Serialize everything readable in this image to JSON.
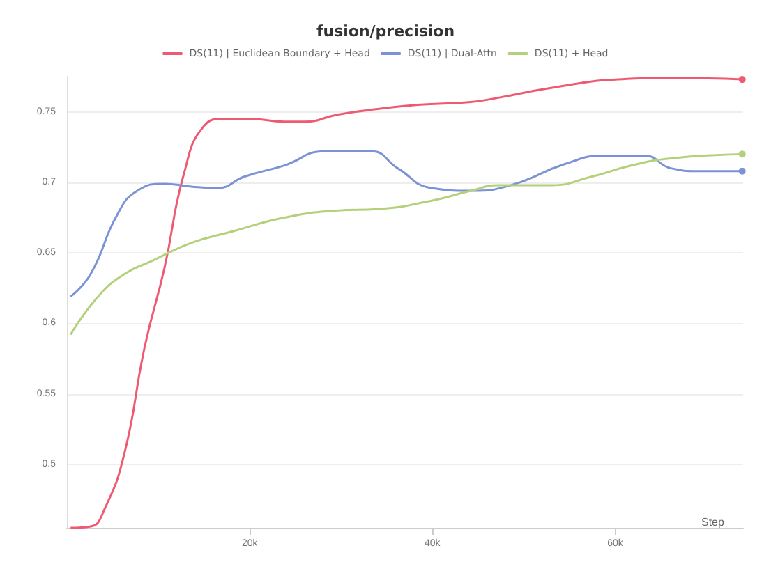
{
  "chart_data": {
    "type": "line",
    "title": "fusion/precision",
    "xlabel": "Step",
    "xlim": [
      0,
      74000
    ],
    "xticks": [
      {
        "value": 20000,
        "label": "20k"
      },
      {
        "value": 40000,
        "label": "40k"
      },
      {
        "value": 60000,
        "label": "60k"
      }
    ],
    "ylim": [
      0.455,
      0.775
    ],
    "yticks": [
      0.5,
      0.55,
      0.6,
      0.65,
      0.7,
      0.75
    ],
    "grid": "y",
    "legend": "top",
    "series": [
      {
        "name": "DS(11) | Euclidean Boundary + Head",
        "color": "#ef5a73",
        "x": [
          400,
          2600,
          4100,
          6300,
          8500,
          10700,
          12800,
          15000,
          17200,
          20100,
          23800,
          26000,
          29600,
          34000,
          38400,
          44200,
          47200,
          53000,
          60300,
          66100,
          73900
        ],
        "values": [
          0.455,
          0.456,
          0.468,
          0.508,
          0.583,
          0.64,
          0.706,
          0.74,
          0.745,
          0.745,
          0.743,
          0.743,
          0.748,
          0.752,
          0.755,
          0.757,
          0.76,
          0.767,
          0.773,
          0.774,
          0.773
        ]
      },
      {
        "name": "DS(11) | Dual-Attn",
        "color": "#7b93d6",
        "x": [
          400,
          2600,
          5500,
          7700,
          10700,
          13600,
          16500,
          19400,
          23800,
          28200,
          33300,
          36200,
          39900,
          44200,
          48600,
          54500,
          58800,
          63200,
          66100,
          69100,
          73900
        ],
        "values": [
          0.619,
          0.635,
          0.677,
          0.694,
          0.699,
          0.697,
          0.696,
          0.704,
          0.712,
          0.722,
          0.722,
          0.71,
          0.696,
          0.694,
          0.698,
          0.713,
          0.719,
          0.719,
          0.71,
          0.708,
          0.708
        ]
      },
      {
        "name": "DS(11) + Head",
        "color": "#b5d07a",
        "x": [
          400,
          3400,
          6300,
          9200,
          13600,
          18000,
          23800,
          29600,
          34000,
          39900,
          44200,
          47200,
          53000,
          57400,
          61800,
          66100,
          73900
        ],
        "values": [
          0.592,
          0.619,
          0.635,
          0.644,
          0.657,
          0.665,
          0.675,
          0.68,
          0.681,
          0.687,
          0.694,
          0.698,
          0.698,
          0.704,
          0.712,
          0.717,
          0.72
        ]
      }
    ]
  }
}
